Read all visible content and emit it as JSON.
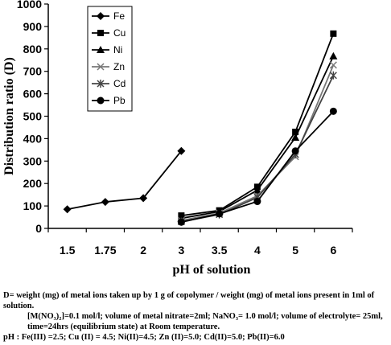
{
  "chart_data": {
    "type": "line",
    "xlabel": "pH of solution",
    "ylabel": "Distribution ratio (D)",
    "categories": [
      "1.5",
      "1.75",
      "2",
      "3",
      "3.5",
      "4",
      "5",
      "6"
    ],
    "ylim": [
      0,
      1000
    ],
    "yticks": [
      0,
      100,
      200,
      300,
      400,
      500,
      600,
      700,
      800,
      900,
      1000
    ],
    "grid": false,
    "legend_position": "top-left",
    "series": [
      {
        "name": "Fe",
        "marker": "diamond",
        "x": [
          "1.5",
          "1.75",
          "2",
          "3"
        ],
        "values": [
          85,
          118,
          135,
          345
        ]
      },
      {
        "name": "Cu",
        "marker": "square",
        "x": [
          "3",
          "3.5",
          "4",
          "5",
          "6"
        ],
        "values": [
          57,
          80,
          185,
          430,
          868
        ]
      },
      {
        "name": "Ni",
        "marker": "triangle",
        "x": [
          "3",
          "3.5",
          "4",
          "5",
          "6"
        ],
        "values": [
          45,
          75,
          170,
          405,
          768
        ]
      },
      {
        "name": "Zn",
        "marker": "x",
        "x": [
          "3",
          "3.5",
          "4",
          "5",
          "6"
        ],
        "values": [
          35,
          68,
          145,
          320,
          728
        ]
      },
      {
        "name": "Cd",
        "marker": "star",
        "x": [
          "3",
          "3.5",
          "4",
          "5",
          "6"
        ],
        "values": [
          30,
          62,
          138,
          330,
          682
        ]
      },
      {
        "name": "Pb",
        "marker": "circle",
        "x": [
          "3",
          "3.5",
          "4",
          "5",
          "6"
        ],
        "values": [
          28,
          65,
          120,
          345,
          522
        ]
      }
    ]
  },
  "notes": [
    "D= weight (mg) of metal ions taken up by 1 g of copolymer / weight (mg) of metal ions present in 1ml of solution.",
    "[M(NO₃)₂]=0.1 mol/l; volume of metal nitrate=2ml; NaNO₃= 1.0 mol/l; volume of electrolyte= 25ml, time=24hrs (equilibrium state) at Room temperature.",
    "pH : Fe(III) =2.5; Cu (II) = 4.5; Ni(II)=4.5; Zn (II)=5.0; Cd(II)=5.0; Pb(II)=6.0"
  ]
}
